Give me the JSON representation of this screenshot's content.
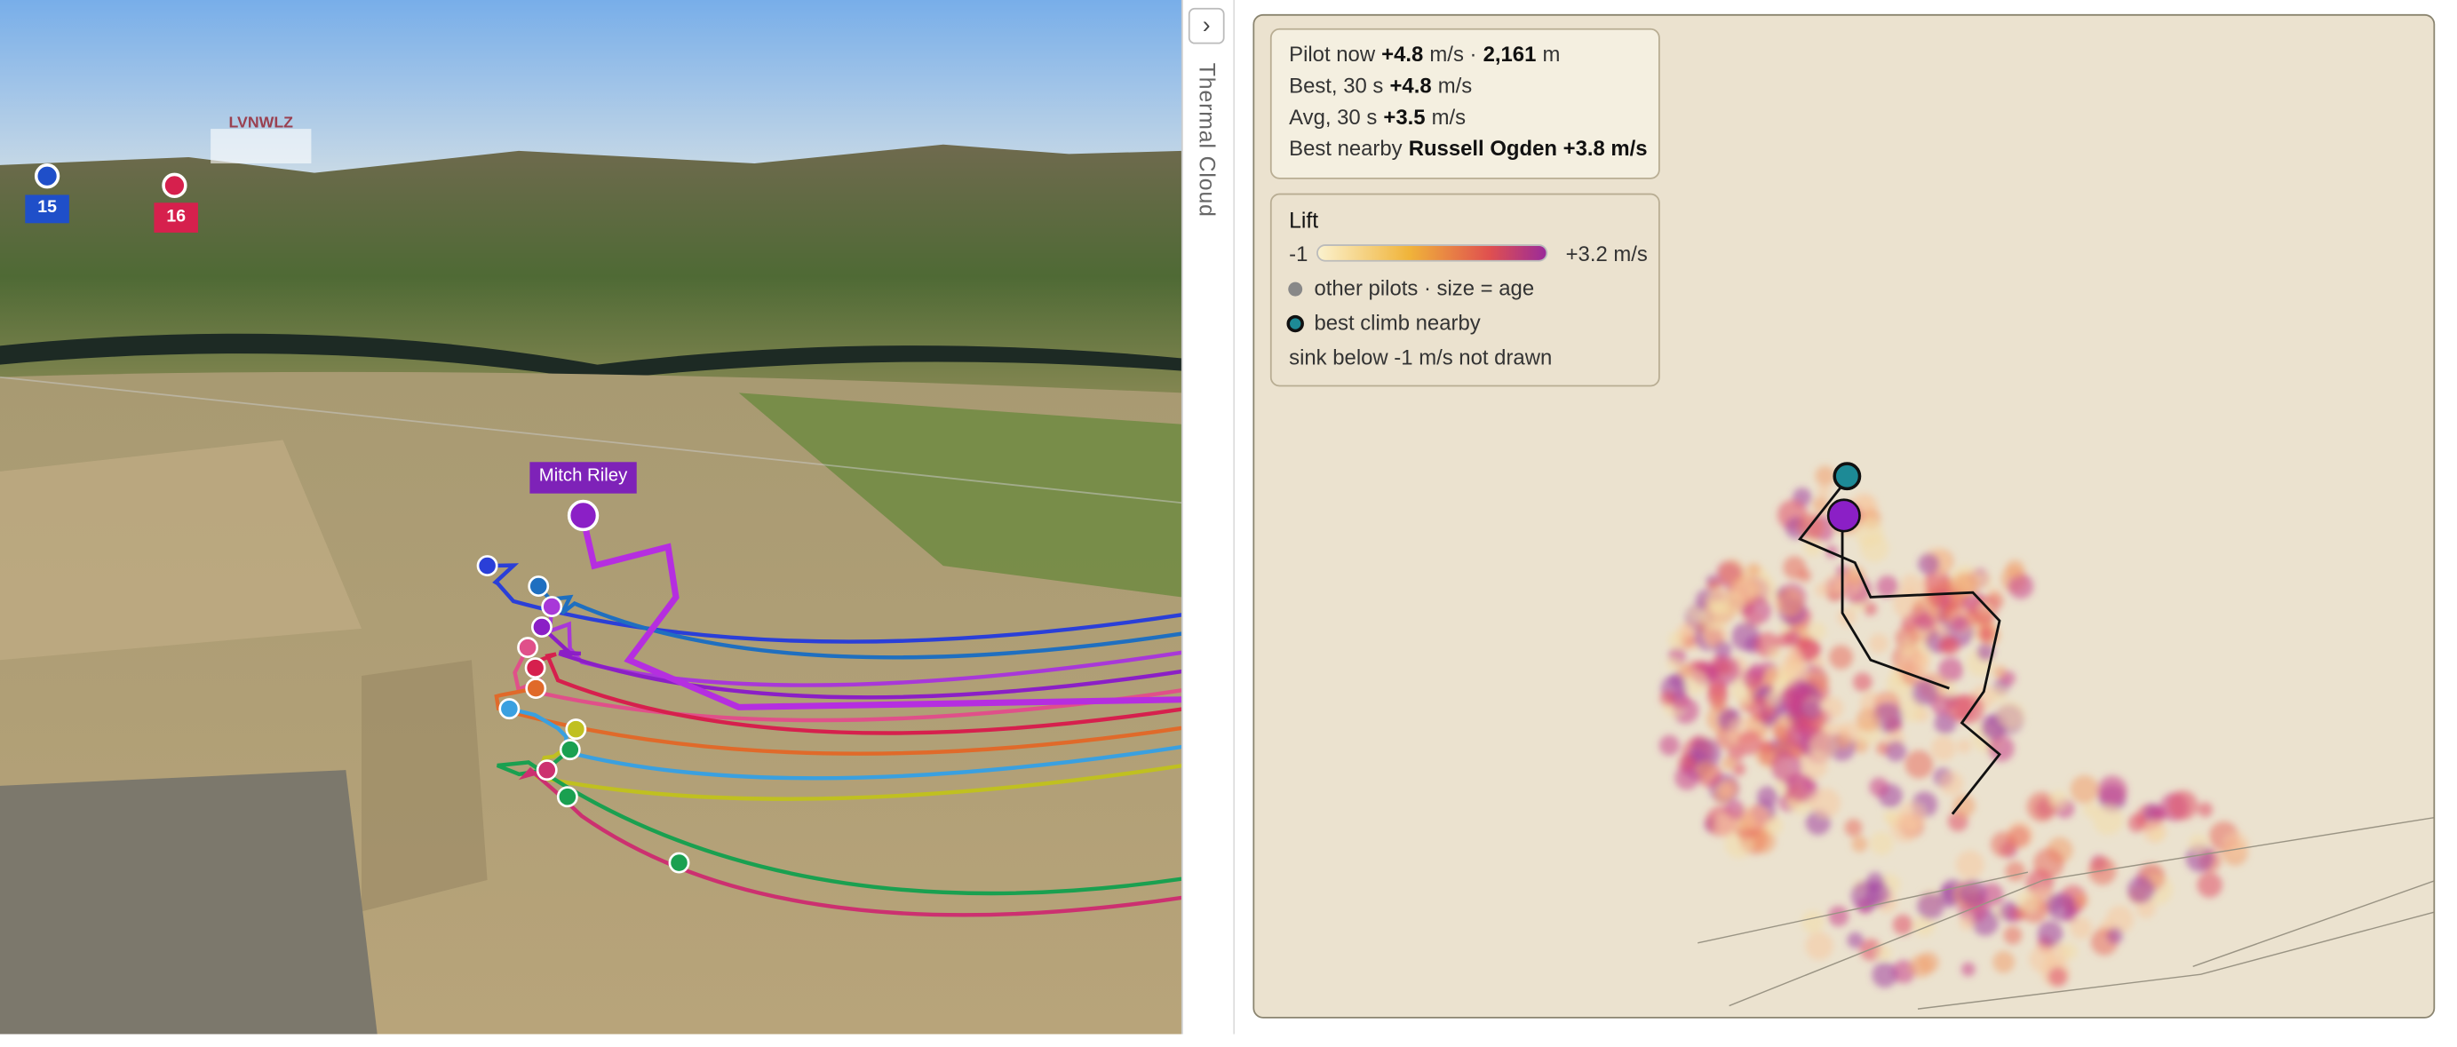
{
  "map": {
    "labels": {
      "station": "LVNWLZ",
      "pilot_15": "15",
      "pilot_16": "16",
      "focus_pilot": "Mitch Riley"
    }
  },
  "sidebar": {
    "toggle": "›",
    "tab": "Thermal Cloud"
  },
  "stats": {
    "rows": [
      {
        "parts": [
          "Pilot now",
          "+4.8",
          "m/s ·",
          "2,161",
          "m"
        ]
      },
      {
        "parts": [
          "Best, 30 s",
          "+4.8",
          "m/s"
        ]
      },
      {
        "parts": [
          "Avg, 30 s",
          "+3.5",
          "m/s"
        ]
      },
      {
        "parts": [
          "Best nearby",
          "Russell Ogden +3.8 m/s"
        ]
      }
    ]
  },
  "legend": {
    "title": "Lift",
    "scale_min": "-1",
    "scale_max": "+3.2 m/s",
    "items": [
      "other pilots · size = age",
      "best climb nearby",
      "sink below -1 m/s not drawn"
    ]
  }
}
